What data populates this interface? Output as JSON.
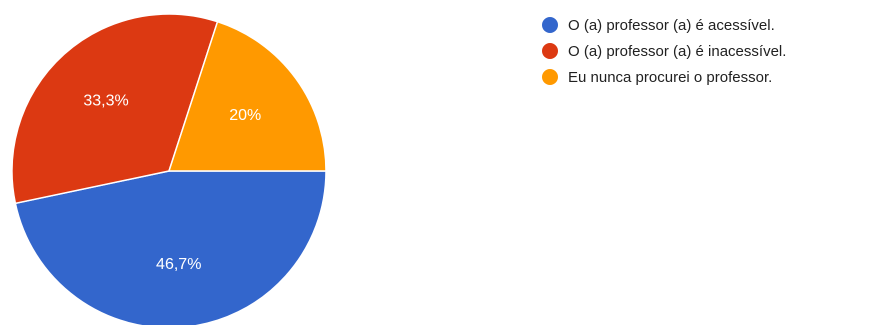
{
  "chart_data": {
    "type": "pie",
    "title": "",
    "categories": [
      "O (a) professor (a) é acessível.",
      "O (a) professor (a) é inacessível.",
      "Eu nunca procurei o professor."
    ],
    "values": [
      46.7,
      33.3,
      20
    ],
    "value_labels": [
      "46,7%",
      "33,3%",
      "20%"
    ],
    "colors": [
      "#3366cc",
      "#dc3912",
      "#ff9900"
    ],
    "legend_position": "right"
  }
}
